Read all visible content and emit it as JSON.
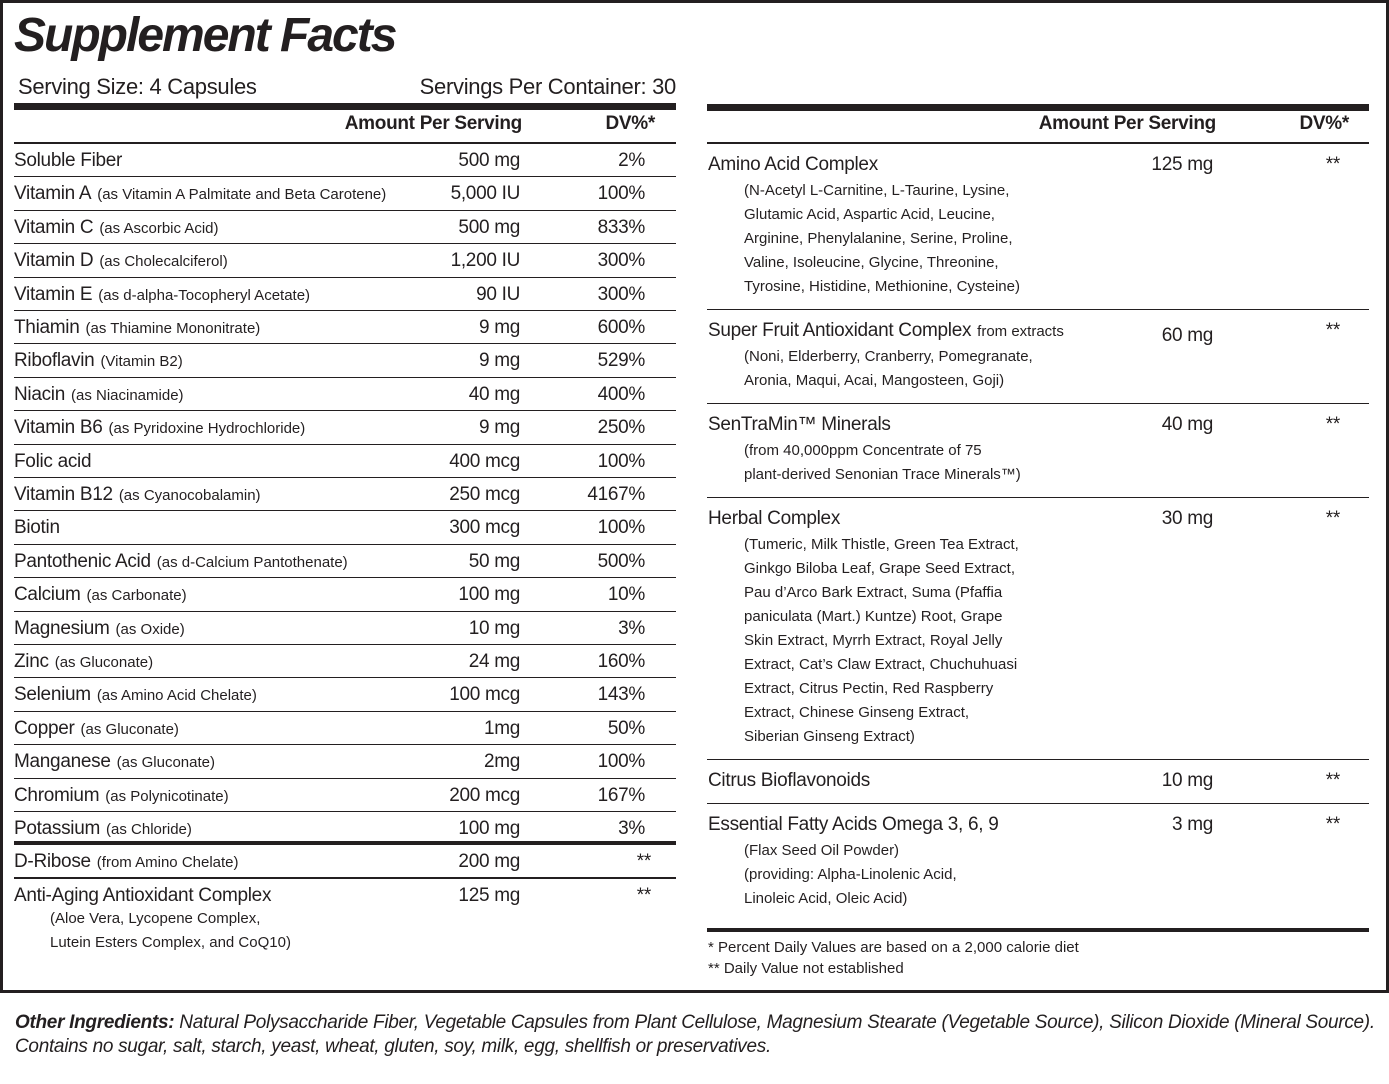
{
  "title": "Supplement Facts",
  "serving_size": "Serving Size: 4 Capsules",
  "servings_per_container": "Servings Per Container: 30",
  "left": {
    "header": {
      "amount": "Amount Per Serving",
      "dv": "DV%*"
    },
    "rows": [
      {
        "name": "Soluble Fiber",
        "amount": "500 mg",
        "dv": "2%"
      },
      {
        "name": "Vitamin A",
        "note": "(as Vitamin A Palmitate and Beta Carotene)",
        "amount": "5,000 IU",
        "dv": "100%"
      },
      {
        "name": "Vitamin C",
        "note": "(as Ascorbic Acid)",
        "amount": "500 mg",
        "dv": "833%"
      },
      {
        "name": "Vitamin D",
        "note": "(as Cholecalciferol)",
        "amount": "1,200 IU",
        "dv": "300%"
      },
      {
        "name": "Vitamin E",
        "note": "(as d-alpha-Tocopheryl Acetate)",
        "amount": "90 IU",
        "dv": "300%"
      },
      {
        "name": "Thiamin",
        "note": "(as Thiamine Mononitrate)",
        "amount": "9 mg",
        "dv": "600%"
      },
      {
        "name": "Riboflavin",
        "note": "(Vitamin B2)",
        "amount": "9 mg",
        "dv": "529%"
      },
      {
        "name": "Niacin",
        "note": "(as Niacinamide)",
        "amount": "40 mg",
        "dv": "400%"
      },
      {
        "name": "Vitamin B6",
        "note": "(as Pyridoxine Hydrochloride)",
        "amount": "9 mg",
        "dv": "250%"
      },
      {
        "name": "Folic acid",
        "amount": "400 mcg",
        "dv": "100%"
      },
      {
        "name": "Vitamin B12",
        "note": "(as Cyanocobalamin)",
        "amount": "250 mcg",
        "dv": "4167%"
      },
      {
        "name": "Biotin",
        "amount": "300 mcg",
        "dv": "100%"
      },
      {
        "name": "Pantothenic Acid",
        "note": "(as d-Calcium Pantothenate)",
        "amount": "50 mg",
        "dv": "500%"
      },
      {
        "name": "Calcium",
        "note": "(as Carbonate)",
        "amount": "100 mg",
        "dv": "10%"
      },
      {
        "name": "Magnesium",
        "note": "(as Oxide)",
        "amount": "10 mg",
        "dv": "3%"
      },
      {
        "name": "Zinc",
        "note": "(as Gluconate)",
        "amount": "24 mg",
        "dv": "160%"
      },
      {
        "name": "Selenium",
        "note": "(as Amino Acid Chelate)",
        "amount": "100 mcg",
        "dv": "143%"
      },
      {
        "name": "Copper",
        "note": "(as Gluconate)",
        "amount": "1mg",
        "dv": "50%"
      },
      {
        "name": "Manganese",
        "note": "(as Gluconate)",
        "amount": "2mg",
        "dv": "100%"
      },
      {
        "name": "Chromium",
        "note": "(as Polynicotinate)",
        "amount": "200 mcg",
        "dv": "167%"
      },
      {
        "name": "Potassium",
        "note": "(as Chloride)",
        "amount": "100 mg",
        "dv": "3%"
      },
      {
        "name": "D-Ribose",
        "note": "(from Amino Chelate)",
        "amount": "200 mg",
        "dv": "**"
      },
      {
        "name": "Anti-Aging Antioxidant Complex",
        "details": [
          "(Aloe Vera, Lycopene Complex,",
          "Lutein Esters Complex, and CoQ10)"
        ],
        "amount": "125 mg",
        "dv": "**"
      }
    ]
  },
  "right": {
    "header": {
      "amount": "Amount Per Serving",
      "dv": "DV%*"
    },
    "rows": [
      {
        "name": "Amino Acid Complex",
        "details": [
          "(N-Acetyl L-Carnitine, L-Taurine, Lysine,",
          "Glutamic Acid, Aspartic Acid, Leucine,",
          "Arginine, Phenylalanine, Serine, Proline,",
          "Valine, Isoleucine, Glycine, Threonine,",
          "Tyrosine, Histidine, Methionine, Cysteine)"
        ],
        "amount": "125 mg",
        "dv": "**"
      },
      {
        "name": "Super Fruit Antioxidant Complex",
        "note": "from extracts",
        "details": [
          "(Noni, Elderberry, Cranberry, Pomegranate,",
          "Aronia, Maqui, Acai, Mangosteen, Goji)"
        ],
        "amount": "60 mg",
        "dv": "**"
      },
      {
        "name": "SenTraMin™ Minerals",
        "details": [
          "(from 40,000ppm Concentrate of 75",
          "plant-derived Senonian Trace Minerals™)"
        ],
        "amount": "40 mg",
        "dv": "**"
      },
      {
        "name": "Herbal Complex",
        "details": [
          "(Tumeric, Milk Thistle, Green Tea Extract,",
          "Ginkgo Biloba Leaf, Grape Seed Extract,",
          "Pau d’Arco Bark Extract, Suma (Pfaffia",
          "paniculata (Mart.) Kuntze) Root, Grape",
          "Skin Extract, Myrrh Extract, Royal Jelly",
          "Extract, Cat’s Claw Extract, Chuchuhuasi",
          "Extract, Citrus Pectin, Red Raspberry",
          "Extract, Chinese Ginseng Extract,",
          "Siberian Ginseng Extract)"
        ],
        "amount": "30 mg",
        "dv": "**"
      },
      {
        "name": "Citrus Bioflavonoids",
        "amount": "10 mg",
        "dv": "**"
      },
      {
        "name": "Essential Fatty Acids Omega 3, 6, 9",
        "details": [
          "(Flax Seed Oil Powder)",
          "(providing: Alpha-Linolenic Acid,",
          "Linoleic Acid, Oleic Acid)"
        ],
        "amount": "3 mg",
        "dv": "**"
      }
    ],
    "footnotes": [
      "* Percent Daily Values are based on a 2,000 calorie diet",
      "** Daily Value not established"
    ]
  },
  "other_ingredients": {
    "label": "Other Ingredients:",
    "text": "Natural Polysaccharide Fiber, Vegetable Capsules from Plant Cellulose, Magnesium Stearate (Vegetable Source), Silicon Dioxide (Mineral Source). Contains no sugar, salt, starch, yeast, wheat, gluten, soy, milk, egg, shellfish or preservatives."
  }
}
